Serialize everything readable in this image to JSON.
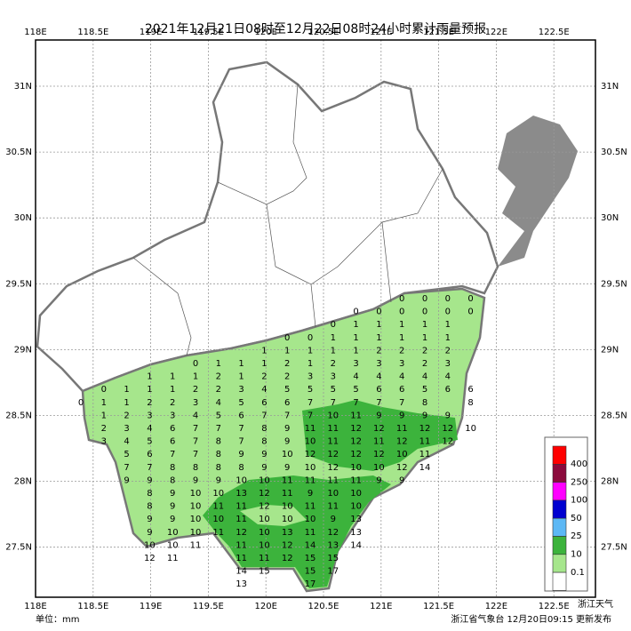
{
  "header": {
    "title": "2021年12月21日08时至12月22日08时24小时累计雨量预报"
  },
  "axes": {
    "lon_ticks": [
      "118E",
      "118.5E",
      "119E",
      "119.5E",
      "120E",
      "120.5E",
      "121E",
      "121.5E",
      "122E",
      "122.5E"
    ],
    "lat_ticks": [
      "31N",
      "30.5N",
      "30N",
      "29.5N",
      "29N",
      "28.5N",
      "28N",
      "27.5N"
    ]
  },
  "legend": {
    "colors": [
      "#ff0000",
      "#8b0a3c",
      "#ff00ff",
      "#0000d0",
      "#5cb8f5",
      "#3cb33c",
      "#a6e68c",
      "#ffffff"
    ],
    "labels": [
      "400",
      "250",
      "100",
      "50",
      "25",
      "10",
      "0.1"
    ]
  },
  "labels": {
    "rows": [
      [
        null,
        null,
        null,
        null,
        null,
        null,
        null,
        null,
        null,
        null,
        null,
        null,
        null,
        null,
        0,
        0,
        0,
        0
      ],
      [
        null,
        null,
        null,
        null,
        null,
        null,
        null,
        null,
        null,
        null,
        null,
        null,
        0,
        0,
        0,
        0,
        0,
        0
      ],
      [
        null,
        null,
        null,
        null,
        null,
        null,
        null,
        null,
        null,
        null,
        null,
        0,
        1,
        1,
        1,
        1,
        1
      ],
      [
        null,
        null,
        null,
        null,
        null,
        null,
        null,
        null,
        null,
        0,
        0,
        1,
        1,
        1,
        1,
        1,
        1
      ],
      [
        null,
        null,
        null,
        null,
        null,
        null,
        null,
        null,
        1,
        1,
        1,
        1,
        1,
        2,
        2,
        2,
        2
      ],
      [
        null,
        null,
        null,
        null,
        null,
        0,
        1,
        1,
        1,
        2,
        1,
        2,
        3,
        3,
        3,
        2,
        3
      ],
      [
        null,
        null,
        null,
        1,
        1,
        1,
        2,
        1,
        2,
        2,
        3,
        3,
        4,
        4,
        4,
        4,
        4
      ],
      [
        null,
        0,
        1,
        1,
        1,
        2,
        2,
        3,
        4,
        5,
        5,
        5,
        5,
        6,
        6,
        5,
        6,
        6
      ],
      [
        0,
        1,
        1,
        2,
        2,
        3,
        4,
        5,
        6,
        6,
        7,
        7,
        7,
        7,
        7,
        8,
        null,
        8
      ],
      [
        null,
        1,
        2,
        3,
        3,
        4,
        5,
        6,
        7,
        7,
        7,
        10,
        11,
        9,
        9,
        9,
        9
      ],
      [
        null,
        2,
        3,
        4,
        6,
        7,
        7,
        7,
        8,
        9,
        11,
        11,
        12,
        12,
        11,
        12,
        12,
        10
      ],
      [
        null,
        3,
        4,
        5,
        6,
        7,
        8,
        7,
        8,
        9,
        10,
        11,
        12,
        11,
        12,
        11,
        12
      ],
      [
        null,
        null,
        5,
        6,
        7,
        7,
        8,
        9,
        9,
        10,
        12,
        12,
        12,
        12,
        10,
        11
      ],
      [
        null,
        null,
        7,
        7,
        8,
        8,
        8,
        8,
        9,
        9,
        10,
        12,
        10,
        10,
        12,
        14
      ],
      [
        null,
        null,
        9,
        9,
        8,
        9,
        9,
        10,
        10,
        11,
        11,
        11,
        11,
        9,
        9
      ],
      [
        null,
        null,
        null,
        8,
        9,
        10,
        10,
        13,
        12,
        11,
        9,
        10,
        10
      ],
      [
        null,
        null,
        null,
        8,
        9,
        10,
        11,
        11,
        12,
        10,
        11,
        11,
        10
      ],
      [
        null,
        null,
        null,
        9,
        9,
        10,
        10,
        11,
        10,
        10,
        10,
        9,
        13
      ],
      [
        null,
        null,
        null,
        9,
        10,
        10,
        11,
        12,
        10,
        13,
        11,
        12,
        13
      ],
      [
        null,
        null,
        null,
        10,
        10,
        11,
        null,
        11,
        10,
        12,
        14,
        13,
        14
      ],
      [
        null,
        null,
        null,
        12,
        11,
        null,
        null,
        11,
        11,
        12,
        15,
        15
      ],
      [
        null,
        null,
        null,
        null,
        null,
        null,
        null,
        14,
        15,
        null,
        15,
        17
      ],
      [
        null,
        null,
        null,
        null,
        null,
        null,
        null,
        13,
        null,
        null,
        17
      ]
    ]
  },
  "footer": {
    "unit": "单位：mm",
    "source": "浙江省气象台 12月20日09:15 更新发布",
    "watermark": "浙江天气"
  }
}
